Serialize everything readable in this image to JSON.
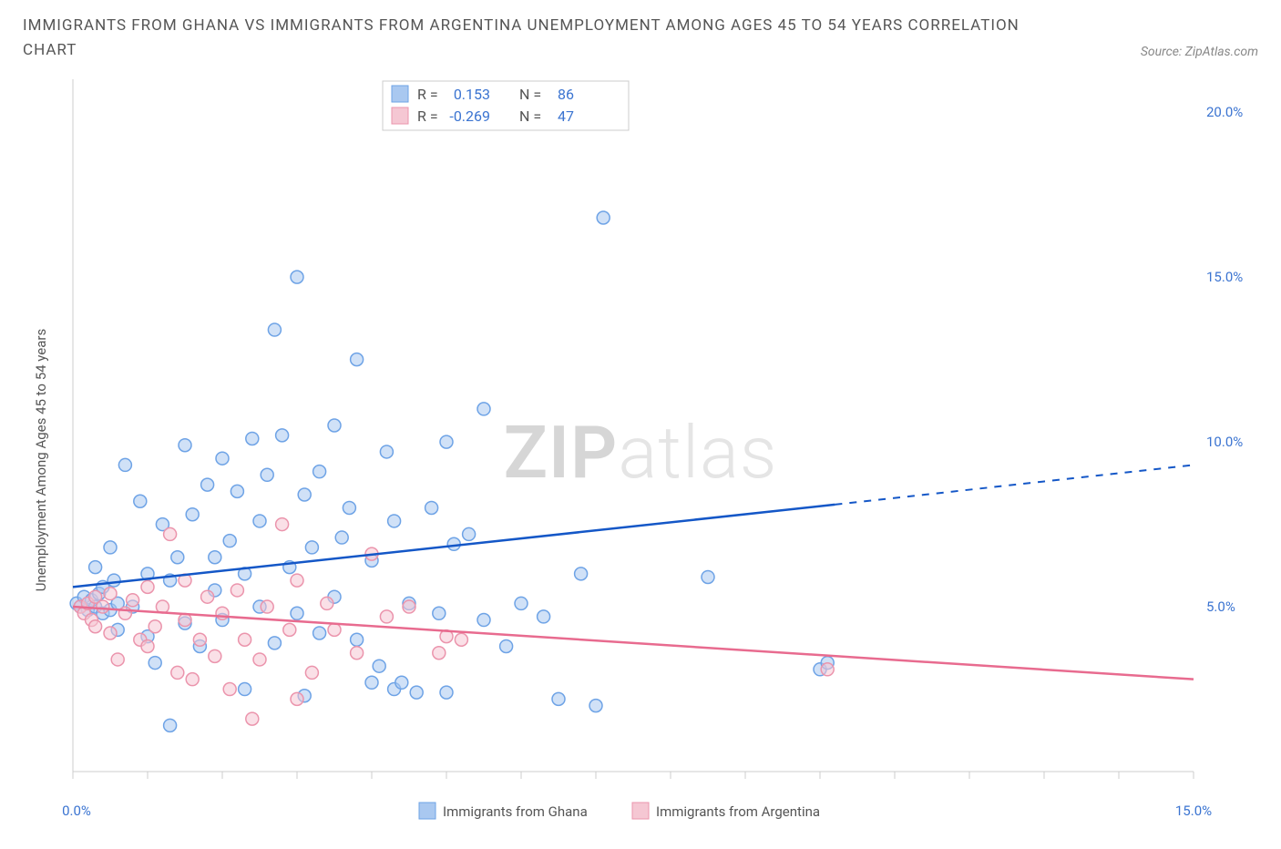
{
  "title": "IMMIGRANTS FROM GHANA VS IMMIGRANTS FROM ARGENTINA UNEMPLOYMENT AMONG AGES 45 TO 54 YEARS CORRELATION CHART",
  "source": "Source: ZipAtlas.com",
  "watermark_a": "ZIP",
  "watermark_b": "atlas",
  "chart": {
    "type": "scatter",
    "background_color": "#ffffff",
    "axis_color": "#cccccc",
    "tick_color": "#cccccc",
    "axis_label_color": "#555555",
    "tick_label_color": "#3b74d1",
    "y_label": "Unemployment Among Ages 45 to 54 years",
    "x_range": [
      0,
      15
    ],
    "y_range": [
      0,
      21
    ],
    "x_ticks": [
      0,
      5,
      10,
      15
    ],
    "x_tick_labels": [
      "0.0%",
      "",
      "",
      "15.0%"
    ],
    "y_ticks": [
      5,
      10,
      15,
      20
    ],
    "y_tick_labels": [
      "5.0%",
      "10.0%",
      "15.0%",
      "20.0%"
    ],
    "marker_radius": 7,
    "marker_stroke_width": 1.5,
    "series": [
      {
        "name": "Immigrants from Ghana",
        "color_fill": "#a9c8f0",
        "color_stroke": "#6ea3e6",
        "trend_color": "#1457c7",
        "r": "0.153",
        "n": "86",
        "trend": {
          "x1": 0,
          "y1": 5.6,
          "x2": 10.2,
          "y2": 8.1,
          "x2_dash": 15,
          "y2_dash": 9.3
        },
        "points": [
          [
            0.05,
            5.1
          ],
          [
            0.1,
            5.0
          ],
          [
            0.15,
            5.3
          ],
          [
            0.2,
            4.9
          ],
          [
            0.25,
            5.2
          ],
          [
            0.3,
            5.0
          ],
          [
            0.3,
            6.2
          ],
          [
            0.35,
            5.4
          ],
          [
            0.4,
            4.8
          ],
          [
            0.4,
            5.6
          ],
          [
            0.5,
            6.8
          ],
          [
            0.5,
            4.9
          ],
          [
            0.55,
            5.8
          ],
          [
            0.6,
            4.3
          ],
          [
            0.6,
            5.1
          ],
          [
            0.7,
            9.3
          ],
          [
            0.8,
            5.0
          ],
          [
            0.9,
            8.2
          ],
          [
            1.0,
            4.1
          ],
          [
            1.0,
            6.0
          ],
          [
            1.1,
            3.3
          ],
          [
            1.2,
            7.5
          ],
          [
            1.3,
            5.8
          ],
          [
            1.3,
            1.4
          ],
          [
            1.4,
            6.5
          ],
          [
            1.5,
            4.5
          ],
          [
            1.5,
            9.9
          ],
          [
            1.6,
            7.8
          ],
          [
            1.7,
            3.8
          ],
          [
            1.8,
            8.7
          ],
          [
            1.9,
            5.5
          ],
          [
            1.9,
            6.5
          ],
          [
            2.0,
            9.5
          ],
          [
            2.0,
            4.6
          ],
          [
            2.1,
            7.0
          ],
          [
            2.2,
            8.5
          ],
          [
            2.3,
            6.0
          ],
          [
            2.3,
            2.5
          ],
          [
            2.4,
            10.1
          ],
          [
            2.5,
            5.0
          ],
          [
            2.5,
            7.6
          ],
          [
            2.6,
            9.0
          ],
          [
            2.7,
            13.4
          ],
          [
            2.7,
            3.9
          ],
          [
            2.8,
            10.2
          ],
          [
            2.9,
            6.2
          ],
          [
            3.0,
            15.0
          ],
          [
            3.0,
            4.8
          ],
          [
            3.1,
            8.4
          ],
          [
            3.1,
            2.3
          ],
          [
            3.2,
            6.8
          ],
          [
            3.3,
            9.1
          ],
          [
            3.3,
            4.2
          ],
          [
            3.5,
            10.5
          ],
          [
            3.5,
            5.3
          ],
          [
            3.6,
            7.1
          ],
          [
            3.7,
            8.0
          ],
          [
            3.8,
            4.0
          ],
          [
            3.8,
            12.5
          ],
          [
            4.0,
            6.4
          ],
          [
            4.0,
            2.7
          ],
          [
            4.1,
            3.2
          ],
          [
            4.2,
            9.7
          ],
          [
            4.3,
            7.6
          ],
          [
            4.3,
            2.5
          ],
          [
            4.4,
            2.7
          ],
          [
            4.5,
            5.1
          ],
          [
            4.6,
            2.4
          ],
          [
            4.8,
            8.0
          ],
          [
            4.9,
            4.8
          ],
          [
            5.0,
            10.0
          ],
          [
            5.0,
            2.4
          ],
          [
            5.1,
            6.9
          ],
          [
            5.3,
            7.2
          ],
          [
            5.5,
            4.6
          ],
          [
            5.5,
            11.0
          ],
          [
            5.8,
            3.8
          ],
          [
            6.0,
            5.1
          ],
          [
            6.3,
            4.7
          ],
          [
            6.5,
            2.2
          ],
          [
            6.8,
            6.0
          ],
          [
            7.0,
            2.0
          ],
          [
            7.1,
            16.8
          ],
          [
            8.5,
            5.9
          ],
          [
            10.0,
            3.1
          ],
          [
            10.1,
            3.3
          ]
        ]
      },
      {
        "name": "Immigrants from Argentina",
        "color_fill": "#f5c7d3",
        "color_stroke": "#eb94ac",
        "trend_color": "#e86b8f",
        "r": "-0.269",
        "n": "47",
        "trend": {
          "x1": 0,
          "y1": 5.0,
          "x2": 15,
          "y2": 2.8
        },
        "points": [
          [
            0.1,
            5.0
          ],
          [
            0.15,
            4.8
          ],
          [
            0.2,
            5.1
          ],
          [
            0.25,
            4.6
          ],
          [
            0.3,
            5.3
          ],
          [
            0.3,
            4.4
          ],
          [
            0.4,
            5.0
          ],
          [
            0.5,
            4.2
          ],
          [
            0.5,
            5.4
          ],
          [
            0.6,
            3.4
          ],
          [
            0.7,
            4.8
          ],
          [
            0.8,
            5.2
          ],
          [
            0.9,
            4.0
          ],
          [
            1.0,
            5.6
          ],
          [
            1.0,
            3.8
          ],
          [
            1.1,
            4.4
          ],
          [
            1.2,
            5.0
          ],
          [
            1.3,
            7.2
          ],
          [
            1.4,
            3.0
          ],
          [
            1.5,
            4.6
          ],
          [
            1.5,
            5.8
          ],
          [
            1.6,
            2.8
          ],
          [
            1.7,
            4.0
          ],
          [
            1.8,
            5.3
          ],
          [
            1.9,
            3.5
          ],
          [
            2.0,
            4.8
          ],
          [
            2.1,
            2.5
          ],
          [
            2.2,
            5.5
          ],
          [
            2.3,
            4.0
          ],
          [
            2.4,
            1.6
          ],
          [
            2.5,
            3.4
          ],
          [
            2.6,
            5.0
          ],
          [
            2.8,
            7.5
          ],
          [
            2.9,
            4.3
          ],
          [
            3.0,
            2.2
          ],
          [
            3.0,
            5.8
          ],
          [
            3.2,
            3.0
          ],
          [
            3.4,
            5.1
          ],
          [
            3.5,
            4.3
          ],
          [
            3.8,
            3.6
          ],
          [
            4.0,
            6.6
          ],
          [
            4.2,
            4.7
          ],
          [
            4.5,
            5.0
          ],
          [
            4.9,
            3.6
          ],
          [
            5.0,
            4.1
          ],
          [
            5.2,
            4.0
          ],
          [
            10.1,
            3.1
          ]
        ]
      }
    ],
    "minor_x_ticks": [
      1,
      2,
      3,
      4,
      6,
      7,
      8,
      9,
      11,
      12,
      13,
      14
    ]
  },
  "legend_top": {
    "r_label": "R =",
    "n_label": "N ="
  },
  "legend_bottom": {
    "items": [
      "Immigrants from Ghana",
      "Immigrants from Argentina"
    ]
  }
}
